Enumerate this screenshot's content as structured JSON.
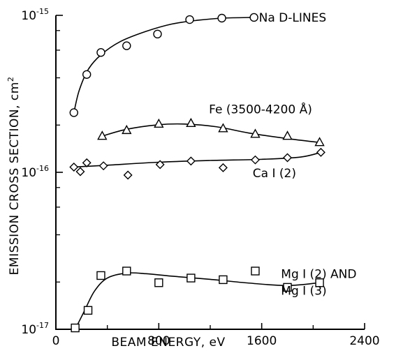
{
  "chart_data": {
    "type": "line",
    "xlabel": "BEAM ENERGY, eV",
    "ylabel": "EMISSION CROSS SECTION, cm",
    "ylabel_exponent": "2",
    "xlim": [
      0,
      2400
    ],
    "ylim": [
      1e-17,
      1e-15
    ],
    "y_scale": "log",
    "grid": false,
    "x_ticks": [
      {
        "value": 0,
        "label": "0"
      },
      {
        "value": 800,
        "label": "800"
      },
      {
        "value": 1600,
        "label": "1600"
      },
      {
        "value": 2400,
        "label": "2400"
      }
    ],
    "y_ticks": [
      {
        "value": 1e-17,
        "base": "10",
        "exp": "-17"
      },
      {
        "value": 1e-16,
        "base": "10",
        "exp": "-16"
      },
      {
        "value": 1e-15,
        "base": "10",
        "exp": "-15"
      }
    ],
    "series": [
      {
        "name": "Na D-LINES",
        "marker": "circle",
        "x": [
          140,
          240,
          350,
          550,
          790,
          1040,
          1290,
          1540
        ],
        "y": [
          2.4e-16,
          4.2e-16,
          5.8e-16,
          6.4e-16,
          7.6e-16,
          9.4e-16,
          9.6e-16,
          9.7e-16
        ],
        "fit": [
          [
            140,
            2.4e-16
          ],
          [
            180,
            3.3e-16
          ],
          [
            250,
            4.5e-16
          ],
          [
            350,
            5.6e-16
          ],
          [
            500,
            6.8e-16
          ],
          [
            700,
            7.9e-16
          ],
          [
            900,
            8.8e-16
          ],
          [
            1100,
            9.3e-16
          ],
          [
            1300,
            9.6e-16
          ],
          [
            1540,
            9.7e-16
          ]
        ]
      },
      {
        "name": "Fe (3500-4200 Å)",
        "marker": "triangle",
        "x": [
          360,
          550,
          800,
          1050,
          1300,
          1550,
          1800,
          2050
        ],
        "y": [
          1.7e-16,
          1.85e-16,
          2.03e-16,
          2.05e-16,
          1.9e-16,
          1.75e-16,
          1.7e-16,
          1.55e-16
        ],
        "fit": [
          [
            360,
            1.7e-16
          ],
          [
            550,
            1.88e-16
          ],
          [
            800,
            2.01e-16
          ],
          [
            1000,
            2.03e-16
          ],
          [
            1250,
            1.95e-16
          ],
          [
            1500,
            1.78e-16
          ],
          [
            1800,
            1.64e-16
          ],
          [
            2050,
            1.55e-16
          ]
        ]
      },
      {
        "name": "Ca I (2)",
        "marker": "diamond",
        "x": [
          140,
          190,
          240,
          370,
          560,
          810,
          1050,
          1300,
          1550,
          1800,
          2060
        ],
        "y": [
          1.08e-16,
          1.01e-16,
          1.15e-16,
          1.1e-16,
          9.6e-17,
          1.12e-16,
          1.18e-16,
          1.07e-16,
          1.2e-16,
          1.24e-16,
          1.34e-16
        ],
        "fit": [
          [
            140,
            1.08e-16
          ],
          [
            400,
            1.11e-16
          ],
          [
            800,
            1.16e-16
          ],
          [
            1200,
            1.19e-16
          ],
          [
            1600,
            1.21e-16
          ],
          [
            1900,
            1.25e-16
          ],
          [
            2060,
            1.34e-16
          ]
        ]
      },
      {
        "name": "Mg I (2) AND",
        "name_line2": "Mg I (3)",
        "marker": "square",
        "x": [
          150,
          250,
          350,
          550,
          800,
          1050,
          1300,
          1550,
          1800,
          2050
        ],
        "y": [
          1.02e-17,
          1.32e-17,
          2.2e-17,
          2.35e-17,
          1.98e-17,
          2.12e-17,
          2.07e-17,
          2.35e-17,
          1.85e-17,
          1.98e-17
        ],
        "fit": [
          [
            150,
            1e-17
          ],
          [
            220,
            1.3e-17
          ],
          [
            300,
            1.75e-17
          ],
          [
            400,
            2.12e-17
          ],
          [
            550,
            2.28e-17
          ],
          [
            700,
            2.26e-17
          ],
          [
            900,
            2.18e-17
          ],
          [
            1200,
            2.08e-17
          ],
          [
            1500,
            1.97e-17
          ],
          [
            1800,
            1.9e-17
          ],
          [
            2050,
            1.98e-17
          ]
        ]
      }
    ]
  }
}
